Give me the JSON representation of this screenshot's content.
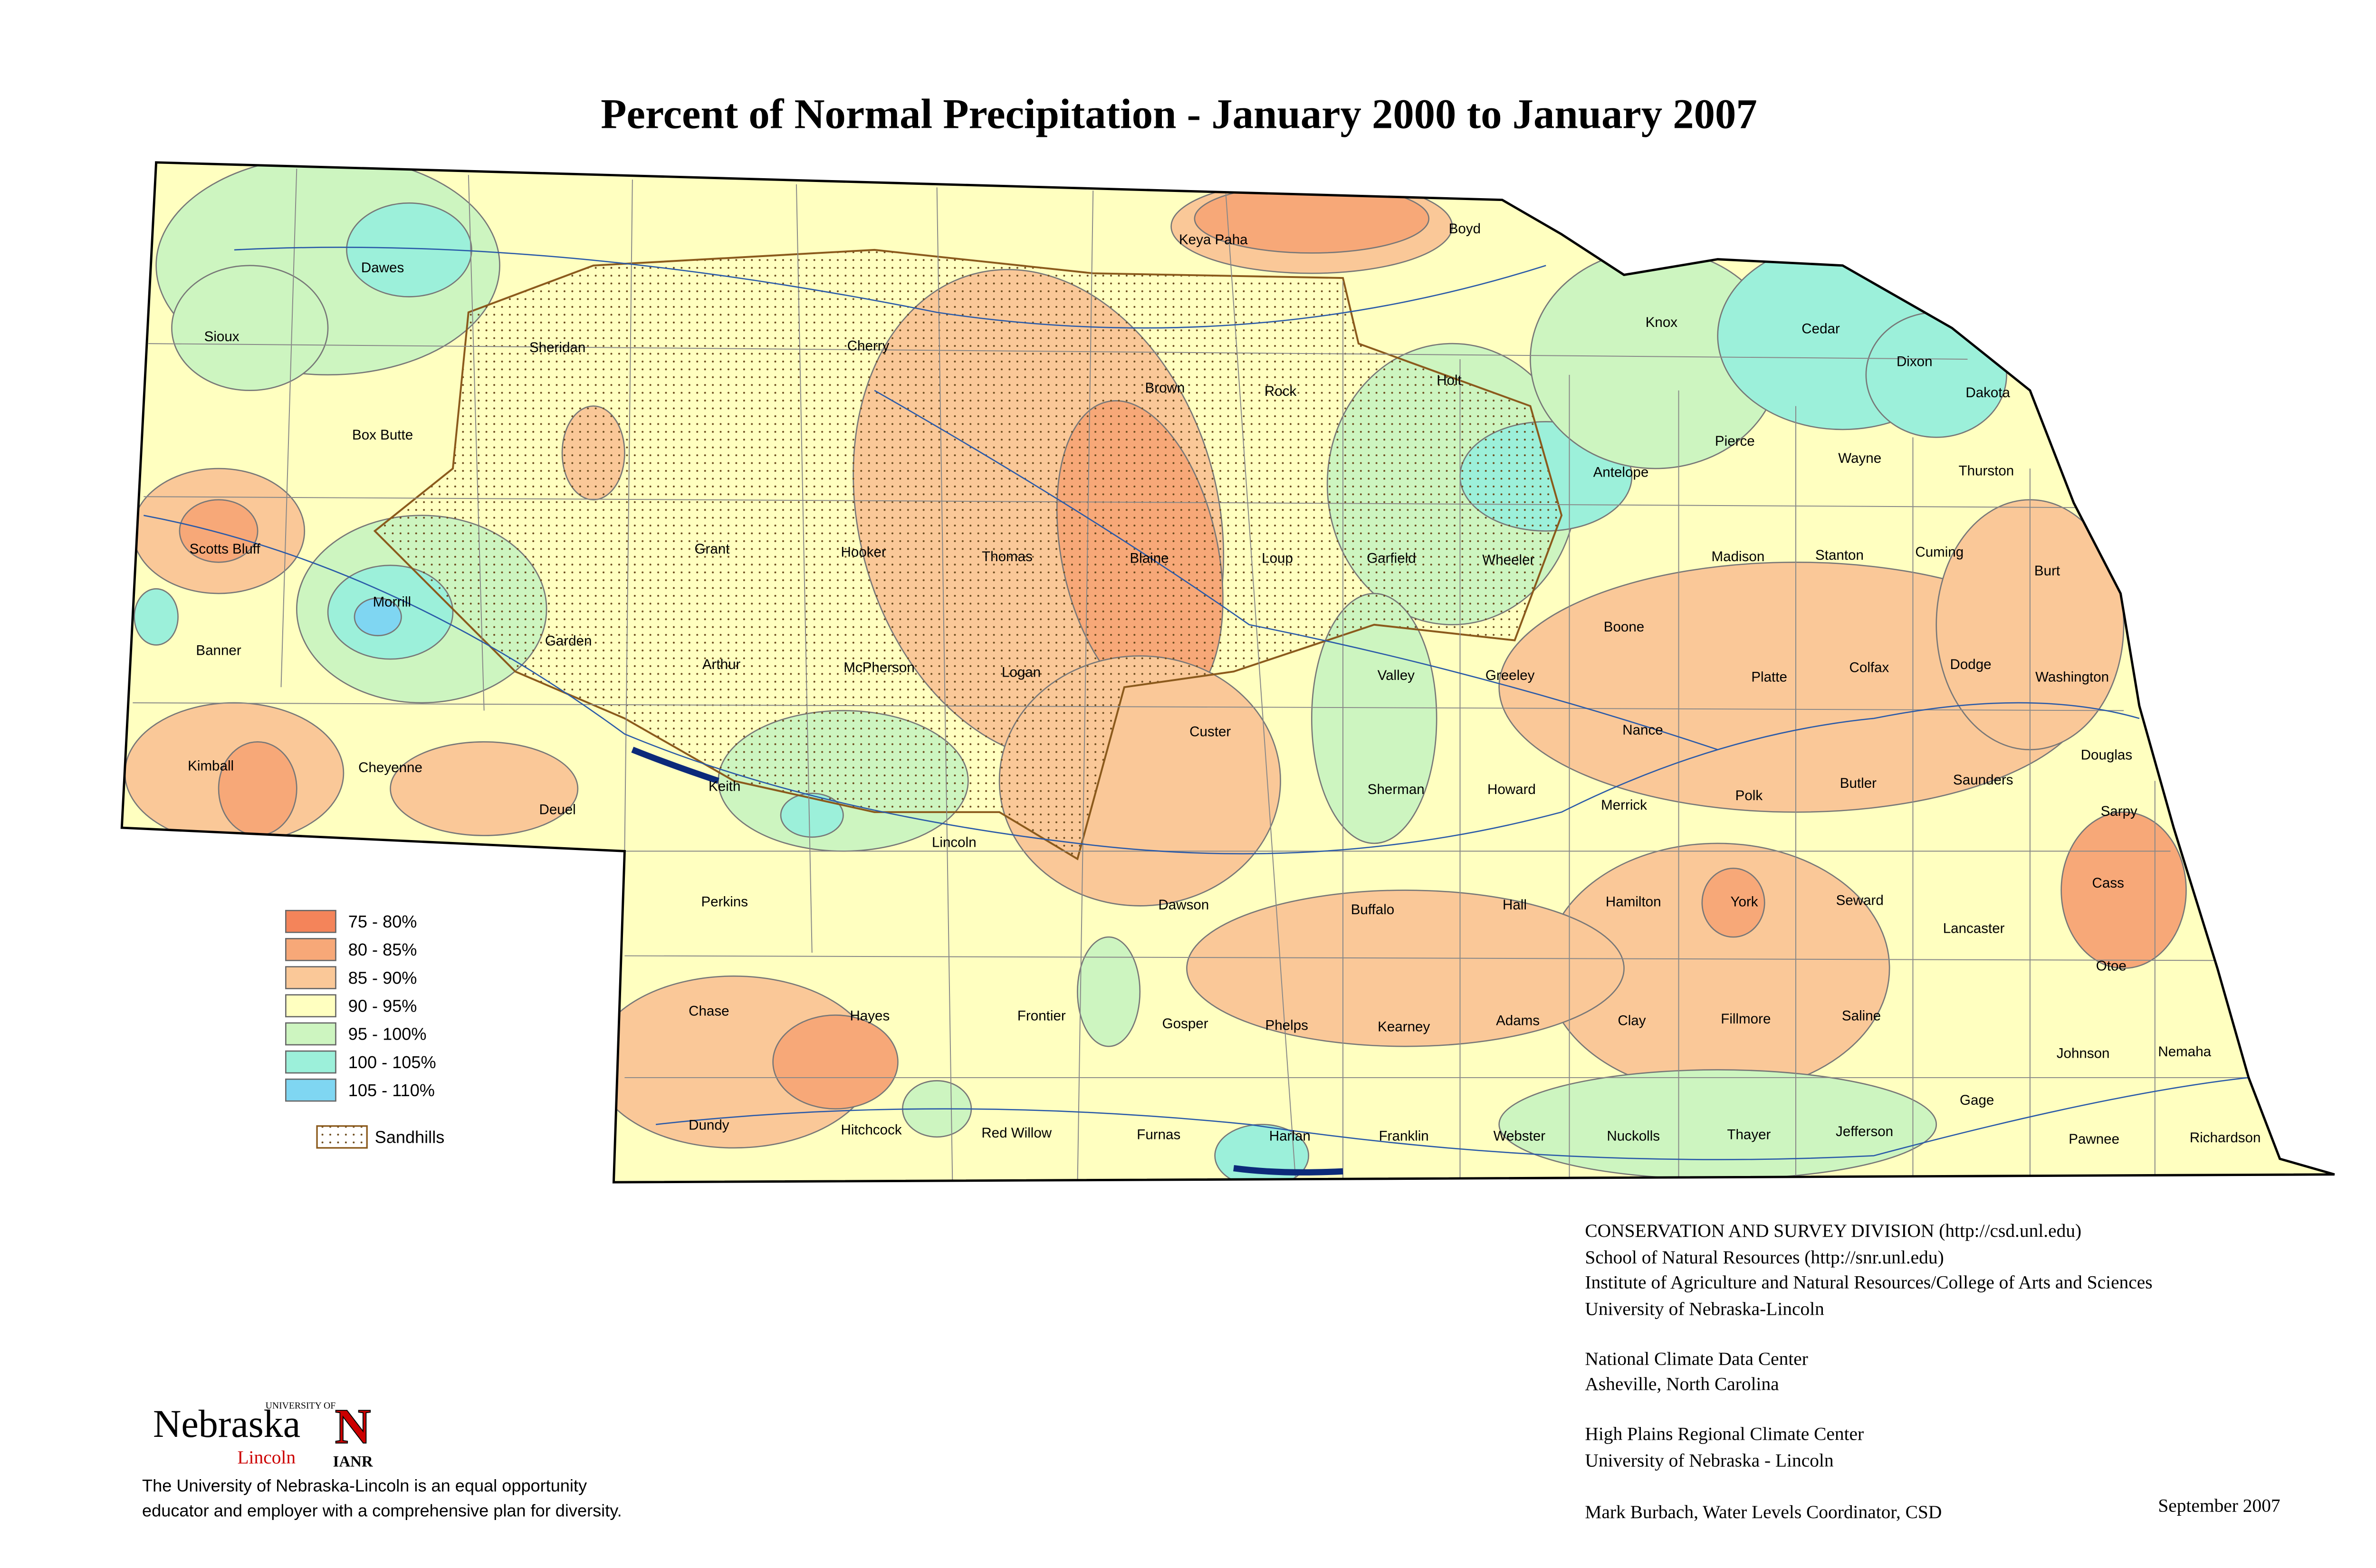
{
  "title": "Percent of Normal Precipitation - January 2000 to January 2007",
  "counties": [
    "Dawes",
    "Sioux",
    "Sheridan",
    "Cherry",
    "Keya Paha",
    "Boyd",
    "Knox",
    "Cedar",
    "Dixon",
    "Dakota",
    "Brown",
    "Rock",
    "Holt",
    "Box Butte",
    "Antelope",
    "Pierce",
    "Wayne",
    "Thurston",
    "Scotts Bluff",
    "Grant",
    "Hooker",
    "Thomas",
    "Blaine",
    "Loup",
    "Garfield",
    "Wheeler",
    "Madison",
    "Stanton",
    "Cuming",
    "Burt",
    "Morrill",
    "Banner",
    "Garden",
    "Arthur",
    "McPherson",
    "Logan",
    "Custer",
    "Valley",
    "Greeley",
    "Boone",
    "Platte",
    "Colfax",
    "Dodge",
    "Washington",
    "Kimball",
    "Cheyenne",
    "Deuel",
    "Keith",
    "Nance",
    "Douglas",
    "Sherman",
    "Howard",
    "Merrick",
    "Polk",
    "Butler",
    "Saunders",
    "Sarpy",
    "Lincoln",
    "Perkins",
    "Dawson",
    "Buffalo",
    "Hall",
    "Hamilton",
    "York",
    "Seward",
    "Cass",
    "Lancaster",
    "Otoe",
    "Chase",
    "Hayes",
    "Frontier",
    "Gosper",
    "Phelps",
    "Kearney",
    "Adams",
    "Clay",
    "Fillmore",
    "Saline",
    "Johnson",
    "Nemaha",
    "Gage",
    "Dundy",
    "Hitchcock",
    "Red Willow",
    "Furnas",
    "Harlan",
    "Franklin",
    "Webster",
    "Nuckolls",
    "Thayer",
    "Jefferson",
    "Pawnee",
    "Richardson"
  ],
  "legend": {
    "items": [
      {
        "label": "75 - 80%",
        "color": "#f4845a"
      },
      {
        "label": "80 - 85%",
        "color": "#f7a878"
      },
      {
        "label": "85 - 90%",
        "color": "#fac898"
      },
      {
        "label": "90 - 95%",
        "color": "#ffffc0"
      },
      {
        "label": "95 - 100%",
        "color": "#cdf5c0"
      },
      {
        "label": "100 - 105%",
        "color": "#9cf0da"
      },
      {
        "label": "105 - 110%",
        "color": "#7fd6f2"
      }
    ],
    "sandhills": "Sandhills"
  },
  "credits": [
    "CONSERVATION AND SURVEY DIVISION (http://csd.unl.edu)",
    "School of Natural Resources (http://snr.unl.edu)",
    "Institute of Agriculture and Natural Resources/College of Arts and Sciences",
    "University of Nebraska-Lincoln",
    "National Climate Data Center",
    "Asheville, North Carolina",
    "High Plains Regional Climate Center",
    "University of Nebraska - Lincoln",
    "Mark Burbach, Water Levels Coordinator, CSD"
  ],
  "date": "September 2007",
  "logo": {
    "university_of": "UNIVERSITY OF",
    "name": "Nebraska",
    "campus": "Lincoln",
    "mark": "N",
    "ianr": "IANR"
  },
  "disclaimer": [
    "The University of Nebraska-Lincoln is an equal opportunity",
    "educator and employer with a comprehensive plan for diversity."
  ]
}
